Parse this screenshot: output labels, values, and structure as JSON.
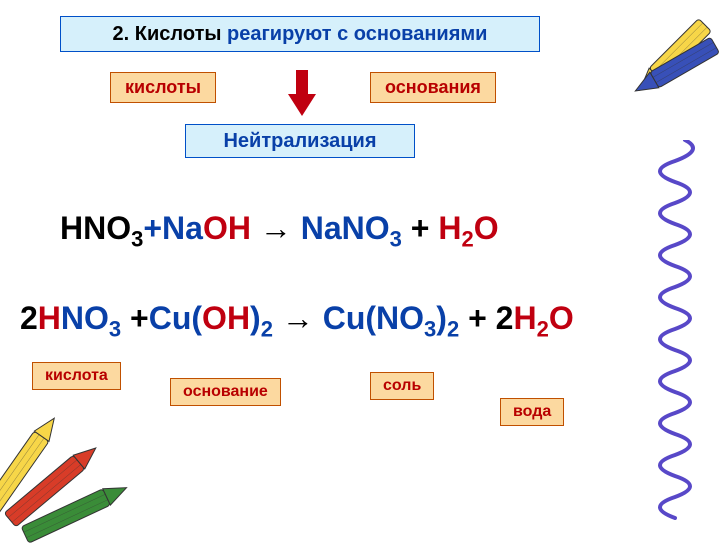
{
  "colors": {
    "title_bg": "#d6f0fb",
    "title_border": "#0050c8",
    "title_text_black": "#000000",
    "title_text_blue": "#0940a8",
    "orange_bg": "#fcd9a0",
    "orange_border": "#c05000",
    "orange_text": "#b80000",
    "neutral_bg": "#d6f0fb",
    "neutral_border": "#0050c8",
    "neutral_text": "#0940a8",
    "eq_black": "#000000",
    "eq_blue": "#0940a8",
    "eq_red": "#c00010",
    "arrow_red": "#c00010",
    "crayon_yellow": "#f7d648",
    "crayon_red": "#d83c28",
    "crayon_green": "#3a8c38",
    "crayon_blue": "#3850b8",
    "squiggle": "#5848c8"
  },
  "title": {
    "part1": "2. Кислоты",
    "part2": " реагируют с основаниями"
  },
  "labels": {
    "acids": "кислоты",
    "bases": "основания",
    "neutral": "Нейтрализация"
  },
  "tags": {
    "acid": "кислота",
    "base": "основание",
    "salt": "соль",
    "water": "вода"
  },
  "equations": {
    "eq1": {
      "parts": [
        {
          "t": "HNO",
          "c": "eq_black"
        },
        {
          "t": "3",
          "c": "eq_black",
          "sub": true
        },
        {
          "t": "+Na",
          "c": "eq_blue"
        },
        {
          "t": "OH",
          "c": "eq_red"
        },
        {
          "t": "  →  ",
          "c": "eq_black"
        },
        {
          "t": "NaNO",
          "c": "eq_blue"
        },
        {
          "t": "3",
          "c": "eq_blue",
          "sub": true
        },
        {
          "t": " + ",
          "c": "eq_black"
        },
        {
          "t": "H",
          "c": "eq_red"
        },
        {
          "t": "2",
          "c": "eq_red",
          "sub": true
        },
        {
          "t": "O",
          "c": "eq_red"
        }
      ]
    },
    "eq2": {
      "parts": [
        {
          "t": "2",
          "c": "eq_black"
        },
        {
          "t": "H",
          "c": "eq_red"
        },
        {
          "t": "NO",
          "c": "eq_blue"
        },
        {
          "t": "3",
          "c": "eq_blue",
          "sub": true
        },
        {
          "t": " +",
          "c": "eq_black"
        },
        {
          "t": "Cu(",
          "c": "eq_blue"
        },
        {
          "t": "OH",
          "c": "eq_red"
        },
        {
          "t": ")",
          "c": "eq_blue"
        },
        {
          "t": "2",
          "c": "eq_blue",
          "sub": true
        },
        {
          "t": "  →  ",
          "c": "eq_black"
        },
        {
          "t": "Cu(NO",
          "c": "eq_blue"
        },
        {
          "t": "3",
          "c": "eq_blue",
          "sub": true
        },
        {
          "t": ")",
          "c": "eq_blue"
        },
        {
          "t": "2",
          "c": "eq_blue",
          "sub": true
        },
        {
          "t": " + 2",
          "c": "eq_black"
        },
        {
          "t": "H",
          "c": "eq_red"
        },
        {
          "t": "2",
          "c": "eq_red",
          "sub": true
        },
        {
          "t": "O",
          "c": "eq_red"
        }
      ]
    }
  }
}
